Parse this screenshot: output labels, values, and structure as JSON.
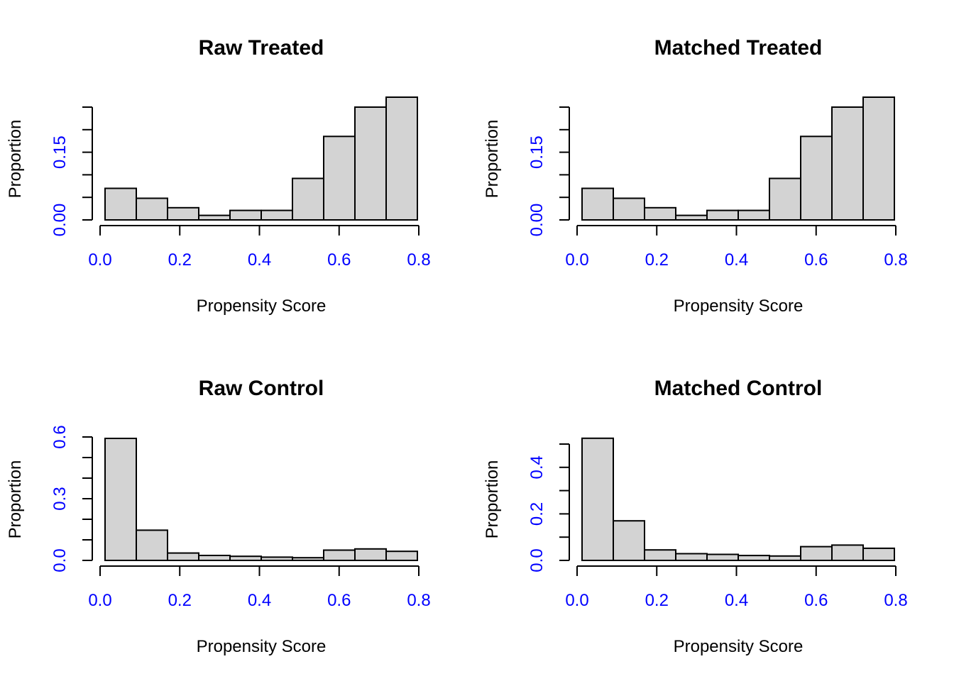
{
  "chart_data": [
    {
      "type": "bar",
      "title": "Raw Treated",
      "xlabel": "Propensity Score",
      "ylabel": "Proportion",
      "xlim": [
        0,
        0.8
      ],
      "ylim": [
        0,
        0.25
      ],
      "x_ticks": [
        0.0,
        0.2,
        0.4,
        0.6,
        0.8
      ],
      "x_tick_labels": [
        "0.0",
        "0.2",
        "0.4",
        "0.6",
        "0.8"
      ],
      "y_ticks": [
        0,
        0.05,
        0.1,
        0.15,
        0.2,
        0.25
      ],
      "y_tick_labels": [
        "0.00",
        "",
        "",
        "0.15",
        "",
        ""
      ],
      "bins": [
        [
          0.0125,
          0.0909
        ],
        [
          0.0909,
          0.1693
        ],
        [
          0.1693,
          0.2477
        ],
        [
          0.2477,
          0.3261
        ],
        [
          0.3261,
          0.4045
        ],
        [
          0.4045,
          0.4829
        ],
        [
          0.4829,
          0.5613
        ],
        [
          0.5613,
          0.6397
        ],
        [
          0.6397,
          0.7181
        ],
        [
          0.7181,
          0.7965
        ]
      ],
      "values": [
        0.07,
        0.048,
        0.027,
        0.01,
        0.021,
        0.021,
        0.092,
        0.185,
        0.25,
        0.272
      ],
      "bar_color": "#d3d3d3",
      "tick_label_color": "#0000ff"
    },
    {
      "type": "bar",
      "title": "Matched Treated",
      "xlabel": "Propensity Score",
      "ylabel": "Proportion",
      "xlim": [
        0,
        0.8
      ],
      "ylim": [
        0,
        0.25
      ],
      "x_ticks": [
        0.0,
        0.2,
        0.4,
        0.6,
        0.8
      ],
      "x_tick_labels": [
        "0.0",
        "0.2",
        "0.4",
        "0.6",
        "0.8"
      ],
      "y_ticks": [
        0,
        0.05,
        0.1,
        0.15,
        0.2,
        0.25
      ],
      "y_tick_labels": [
        "0.00",
        "",
        "",
        "0.15",
        "",
        ""
      ],
      "bins": [
        [
          0.0125,
          0.0909
        ],
        [
          0.0909,
          0.1693
        ],
        [
          0.1693,
          0.2477
        ],
        [
          0.2477,
          0.3261
        ],
        [
          0.3261,
          0.4045
        ],
        [
          0.4045,
          0.4829
        ],
        [
          0.4829,
          0.5613
        ],
        [
          0.5613,
          0.6397
        ],
        [
          0.6397,
          0.7181
        ],
        [
          0.7181,
          0.7965
        ]
      ],
      "values": [
        0.07,
        0.048,
        0.027,
        0.01,
        0.021,
        0.021,
        0.092,
        0.185,
        0.25,
        0.272
      ],
      "bar_color": "#d3d3d3",
      "tick_label_color": "#0000ff"
    },
    {
      "type": "bar",
      "title": "Raw Control",
      "xlabel": "Propensity Score",
      "ylabel": "Proportion",
      "xlim": [
        0,
        0.8
      ],
      "ylim": [
        0,
        0.6
      ],
      "x_ticks": [
        0.0,
        0.2,
        0.4,
        0.6,
        0.8
      ],
      "x_tick_labels": [
        "0.0",
        "0.2",
        "0.4",
        "0.6",
        "0.8"
      ],
      "y_ticks": [
        0,
        0.1,
        0.2,
        0.3,
        0.4,
        0.5,
        0.6
      ],
      "y_tick_labels": [
        "0.0",
        "",
        "",
        "0.3",
        "",
        "",
        "0.6"
      ],
      "bins": [
        [
          0.0125,
          0.0909
        ],
        [
          0.0909,
          0.1693
        ],
        [
          0.1693,
          0.2477
        ],
        [
          0.2477,
          0.3261
        ],
        [
          0.3261,
          0.4045
        ],
        [
          0.4045,
          0.4829
        ],
        [
          0.4829,
          0.5613
        ],
        [
          0.5613,
          0.6397
        ],
        [
          0.6397,
          0.7181
        ],
        [
          0.7181,
          0.7965
        ]
      ],
      "values": [
        0.593,
        0.147,
        0.036,
        0.024,
        0.02,
        0.016,
        0.013,
        0.05,
        0.056,
        0.044
      ],
      "bar_color": "#d3d3d3",
      "tick_label_color": "#0000ff"
    },
    {
      "type": "bar",
      "title": "Matched Control",
      "xlabel": "Propensity Score",
      "ylabel": "Proportion",
      "xlim": [
        0,
        0.8
      ],
      "ylim": [
        0,
        0.5
      ],
      "x_ticks": [
        0.0,
        0.2,
        0.4,
        0.6,
        0.8
      ],
      "x_tick_labels": [
        "0.0",
        "0.2",
        "0.4",
        "0.6",
        "0.8"
      ],
      "y_ticks": [
        0,
        0.1,
        0.2,
        0.3,
        0.4,
        0.5
      ],
      "y_tick_labels": [
        "0.0",
        "",
        "0.2",
        "",
        "0.4",
        ""
      ],
      "bins": [
        [
          0.0125,
          0.0909
        ],
        [
          0.0909,
          0.1693
        ],
        [
          0.1693,
          0.2477
        ],
        [
          0.2477,
          0.3261
        ],
        [
          0.3261,
          0.4045
        ],
        [
          0.4045,
          0.4829
        ],
        [
          0.4829,
          0.5613
        ],
        [
          0.5613,
          0.6397
        ],
        [
          0.6397,
          0.7181
        ],
        [
          0.7181,
          0.7965
        ]
      ],
      "values": [
        0.525,
        0.17,
        0.045,
        0.029,
        0.026,
        0.021,
        0.019,
        0.059,
        0.066,
        0.052
      ],
      "bar_color": "#d3d3d3",
      "tick_label_color": "#0000ff"
    }
  ]
}
